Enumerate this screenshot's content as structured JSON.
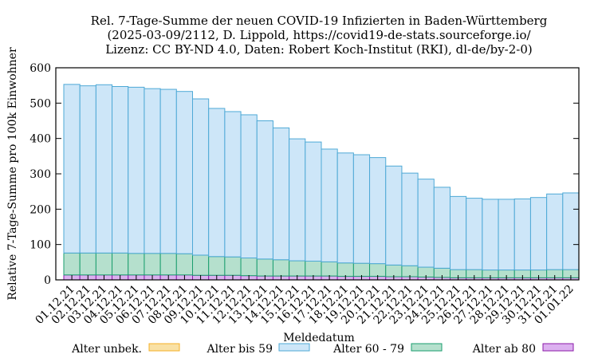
{
  "chart_data": {
    "type": "bar",
    "stacked": true,
    "title_lines": [
      "Rel. 7-Tage-Summe der neuen COVID-19 Infizierten in Baden-Württemberg",
      "(2025-03-09/2112, D. Lippold, https://covid19-de-stats.sourceforge.io/",
      "Lizenz: CC BY-ND 4.0, Daten: Robert Koch-Institut (RKI), dl-de/by-2-0)"
    ],
    "xlabel": "Meldedatum",
    "ylabel": "Relative 7-Tage-Summe pro 100k Einwohner",
    "ylim": [
      0,
      600
    ],
    "yticks": [
      0,
      100,
      200,
      300,
      400,
      500,
      600
    ],
    "grid": false,
    "legend_position": "bottom",
    "categories": [
      "01.12.21",
      "02.12.21",
      "03.12.21",
      "04.12.21",
      "05.12.21",
      "06.12.21",
      "07.12.21",
      "08.12.21",
      "09.12.21",
      "10.12.21",
      "11.12.21",
      "12.12.21",
      "13.12.21",
      "14.12.21",
      "15.12.21",
      "16.12.21",
      "17.12.21",
      "18.12.21",
      "19.12.21",
      "20.12.21",
      "21.12.21",
      "22.12.21",
      "23.12.21",
      "24.12.21",
      "25.12.21",
      "26.12.21",
      "27.12.21",
      "28.12.21",
      "29.12.21",
      "30.12.21",
      "31.12.21",
      "01.01.22"
    ],
    "series": [
      {
        "name": "Alter unbek.",
        "color": "#f5b027",
        "fill": "#f9e1a5",
        "values": [
          0,
          0,
          0,
          0,
          0,
          0,
          0,
          0,
          0,
          0,
          0,
          0,
          0,
          0,
          0,
          0,
          0,
          0,
          0,
          0,
          0,
          0,
          0,
          0,
          0,
          0,
          0,
          0,
          0,
          0,
          0,
          0
        ]
      },
      {
        "name": "Alter bis 59",
        "color": "#4ea9d6",
        "fill": "#cde6f8",
        "values": [
          477,
          473,
          476,
          471,
          470,
          466,
          464,
          459,
          442,
          419,
          411,
          405,
          391,
          373,
          345,
          337,
          319,
          311,
          307,
          300,
          280,
          262,
          249,
          229,
          207,
          202,
          200,
          200,
          201,
          205,
          214,
          217
        ]
      },
      {
        "name": "Alter 60 - 79",
        "color": "#1a9e6e",
        "fill": "#b5e0cd",
        "values": [
          62,
          62,
          62,
          62,
          61,
          61,
          61,
          60,
          57,
          53,
          52,
          50,
          48,
          46,
          43,
          42,
          40,
          38,
          37,
          36,
          33,
          31,
          28,
          26,
          23,
          23,
          22,
          22,
          22,
          22,
          23,
          23
        ]
      },
      {
        "name": "Alter ab 80",
        "color": "#8b1aa8",
        "fill": "#dcb0f0",
        "values": [
          14,
          14,
          14,
          14,
          14,
          14,
          14,
          14,
          13,
          13,
          13,
          12,
          11,
          11,
          11,
          11,
          11,
          10,
          10,
          10,
          9,
          9,
          8,
          7,
          6,
          6,
          6,
          6,
          6,
          6,
          6,
          6
        ]
      }
    ]
  }
}
